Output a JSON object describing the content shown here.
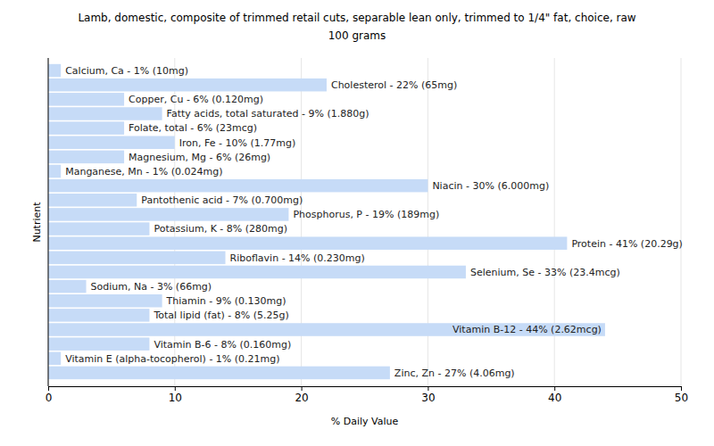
{
  "chart_data": {
    "type": "bar",
    "orientation": "horizontal",
    "title": "Lamb, domestic, composite of trimmed retail cuts, separable lean only, trimmed to 1/4\" fat, choice, raw",
    "subtitle": "100 grams",
    "x_label": "% Daily Value",
    "y_label": "Nutrient",
    "categories": [
      null,
      null,
      null,
      null,
      null,
      null,
      null,
      null,
      null,
      null,
      null,
      null,
      null,
      null,
      null,
      null,
      null,
      null,
      null,
      null,
      null,
      null
    ],
    "values": [
      1,
      22,
      6,
      9,
      6,
      10,
      6,
      1,
      30,
      7,
      19,
      8,
      41,
      14,
      33,
      3,
      9,
      8,
      44,
      8,
      1,
      27
    ],
    "value_labels": [
      "Calcium, Ca - 1% (10mg)",
      "Cholesterol - 22% (65mg)",
      "Copper, Cu - 6% (0.120mg)",
      "Fatty acids, total saturated - 9% (1.880g)",
      "Folate, total - 6% (23mcg)",
      "Iron, Fe - 10% (1.77mg)",
      "Magnesium, Mg - 6% (26mg)",
      "Manganese, Mn - 1% (0.024mg)",
      "Niacin - 30% (6.000mg)",
      "Pantothenic acid - 7% (0.700mg)",
      "Phosphorus, P - 19% (189mg)",
      "Potassium, K - 8% (280mg)",
      "Protein - 41% (20.29g)",
      "Riboflavin - 14% (0.230mg)",
      "Selenium, Se - 33% (23.4mcg)",
      "Sodium, Na - 3% (66mg)",
      "Thiamin - 9% (0.130mg)",
      "Total lipid (fat) - 8% (5.25g)",
      "Vitamin B-12 - 44% (2.62mcg)",
      "Vitamin B-6 - 8% (0.160mg)",
      "Vitamin E (alpha-tocopherol) - 1% (0.21mg)",
      "Zinc, Zn - 27% (4.06mg)"
    ],
    "data_labels": true,
    "tick_labels": "x",
    "color": "#c6dbf7",
    "xlim": [
      0,
      50
    ],
    "xticks": [
      0,
      10,
      20,
      30,
      40,
      50
    ],
    "grid": true
  }
}
